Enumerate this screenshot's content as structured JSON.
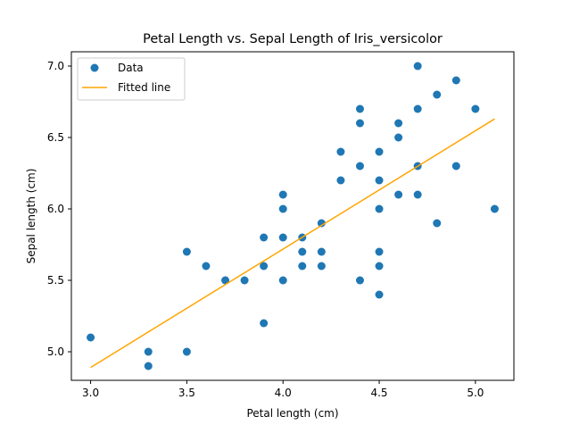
{
  "chart_data": {
    "type": "scatter",
    "title": "Petal Length vs. Sepal Length of Iris_versicolor",
    "xlabel": "Petal length (cm)",
    "ylabel": "Sepal length (cm)",
    "xlim": [
      2.9,
      5.2
    ],
    "ylim": [
      4.8,
      7.1
    ],
    "xticks": [
      "3.0",
      "3.5",
      "4.0",
      "4.5",
      "5.0"
    ],
    "yticks": [
      "5.0",
      "5.5",
      "6.0",
      "6.5",
      "7.0"
    ],
    "grid": false,
    "legend_position": "top-left",
    "series": [
      {
        "name": "Data",
        "kind": "scatter",
        "color": "#1f77b4",
        "points": [
          [
            3.0,
            5.1
          ],
          [
            3.3,
            5.0
          ],
          [
            3.3,
            4.9
          ],
          [
            3.5,
            5.7
          ],
          [
            3.5,
            5.0
          ],
          [
            3.6,
            5.6
          ],
          [
            3.7,
            5.5
          ],
          [
            3.8,
            5.5
          ],
          [
            3.9,
            5.8
          ],
          [
            3.9,
            5.6
          ],
          [
            3.9,
            5.2
          ],
          [
            4.0,
            6.1
          ],
          [
            4.0,
            6.0
          ],
          [
            4.0,
            5.8
          ],
          [
            4.0,
            5.5
          ],
          [
            4.1,
            5.8
          ],
          [
            4.1,
            5.7
          ],
          [
            4.1,
            5.6
          ],
          [
            4.2,
            5.9
          ],
          [
            4.2,
            5.7
          ],
          [
            4.2,
            5.6
          ],
          [
            4.3,
            6.4
          ],
          [
            4.3,
            6.2
          ],
          [
            4.4,
            6.7
          ],
          [
            4.4,
            6.6
          ],
          [
            4.4,
            6.3
          ],
          [
            4.4,
            5.5
          ],
          [
            4.5,
            6.4
          ],
          [
            4.5,
            6.2
          ],
          [
            4.5,
            6.0
          ],
          [
            4.5,
            5.7
          ],
          [
            4.5,
            5.6
          ],
          [
            4.5,
            5.4
          ],
          [
            4.6,
            6.6
          ],
          [
            4.6,
            6.5
          ],
          [
            4.6,
            6.1
          ],
          [
            4.7,
            7.0
          ],
          [
            4.7,
            6.7
          ],
          [
            4.7,
            6.3
          ],
          [
            4.7,
            6.1
          ],
          [
            4.8,
            6.8
          ],
          [
            4.8,
            5.9
          ],
          [
            4.9,
            6.9
          ],
          [
            4.9,
            6.3
          ],
          [
            5.0,
            6.7
          ],
          [
            5.1,
            6.0
          ]
        ]
      },
      {
        "name": "Fitted line",
        "kind": "line",
        "color": "#ffa500",
        "x": [
          3.0,
          5.1
        ],
        "y": [
          4.89,
          6.63
        ]
      }
    ]
  }
}
